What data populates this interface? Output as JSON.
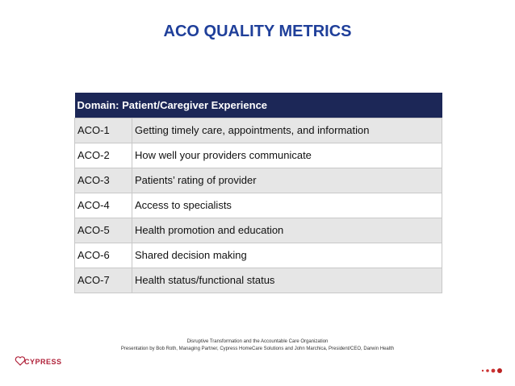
{
  "title": "ACO QUALITY METRICS",
  "table": {
    "header": "Domain: Patient/Caregiver Experience",
    "rows": [
      [
        "ACO-1",
        "Getting timely care, appointments, and information"
      ],
      [
        "ACO-2",
        "How well your providers communicate"
      ],
      [
        "ACO-3",
        "Patients’ rating of provider"
      ],
      [
        "ACO-4",
        "Access to specialists"
      ],
      [
        "ACO-5",
        "Health promotion and education"
      ],
      [
        "ACO-6",
        "Shared decision making"
      ],
      [
        "ACO-7",
        "Health status/functional status"
      ]
    ]
  },
  "footer": {
    "lines": [
      "Disruptive Transformation and the Accountable Care Organization",
      "Presentation by Bob Roth, Managing Partner, Cypress HomeCare Solutions and John Marchica, President/CEO, Darwin Health"
    ]
  },
  "logo": {
    "text": "CYPRESS"
  }
}
